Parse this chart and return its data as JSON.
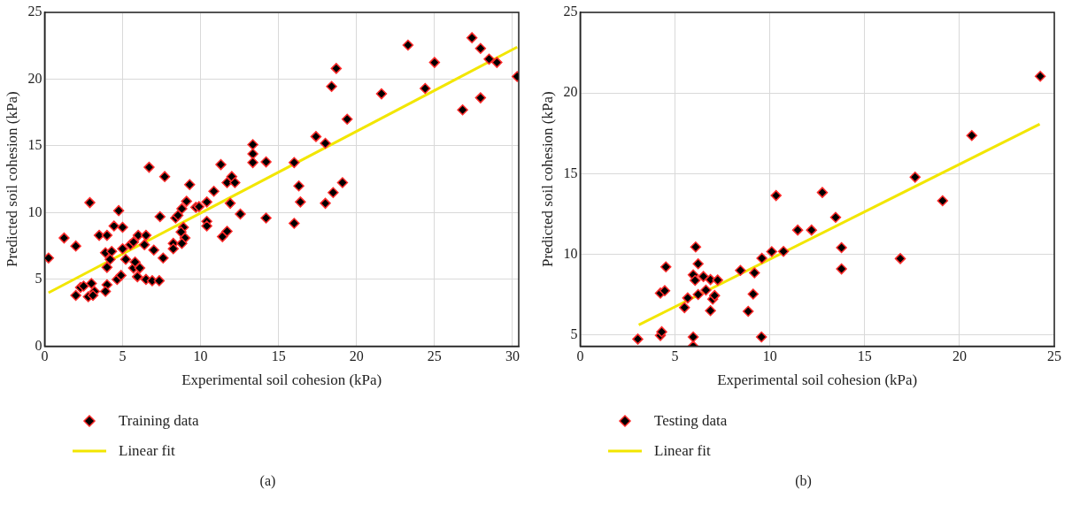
{
  "chart_data": [
    {
      "type": "scatter",
      "xlabel": "Experimental soil cohesion (kPa)",
      "ylabel": "Predicted soil cohesion (kPa)",
      "xlim": [
        0,
        30.4
      ],
      "xticks": [
        0,
        5,
        10,
        15,
        20,
        25,
        30
      ],
      "ylim": [
        0,
        25
      ],
      "yticks": [
        0,
        5,
        10,
        15,
        20,
        25
      ],
      "grid": true,
      "legend": "bottom",
      "annotations": [
        "(a)"
      ],
      "series": [
        {
          "name": "Training data",
          "type": "scatter",
          "marker": "diamond",
          "color": "#000000",
          "x": [
            0.25,
            1.25,
            2.0,
            2.0,
            2.3,
            2.5,
            2.9,
            2.8,
            3.0,
            3.2,
            3.1,
            3.5,
            4.0,
            3.9,
            4.3,
            4.0,
            4.2,
            4.0,
            3.9,
            4.45,
            4.75,
            5.0,
            4.65,
            4.9,
            5.0,
            5.2,
            5.5,
            5.7,
            5.7,
            5.95,
            6.1,
            5.8,
            6.0,
            6.5,
            6.4,
            6.7,
            6.5,
            7.0,
            6.9,
            7.35,
            7.4,
            7.6,
            7.7,
            8.25,
            8.25,
            8.4,
            8.55,
            8.8,
            8.9,
            8.75,
            9.0,
            8.8,
            9.1,
            9.3,
            9.7,
            9.9,
            10.4,
            10.4,
            10.4,
            10.85,
            11.3,
            11.4,
            11.7,
            11.9,
            11.7,
            12.0,
            12.2,
            12.55,
            13.35,
            13.35,
            13.35,
            14.2,
            14.2,
            16.0,
            16.3,
            16.4,
            16.0,
            17.4,
            18.0,
            18.0,
            18.5,
            19.1,
            18.4,
            18.7,
            19.4,
            21.6,
            23.3,
            24.4,
            25.0,
            26.8,
            27.4,
            27.95,
            27.95,
            28.5,
            29.0,
            30.3
          ],
          "values": [
            6.6,
            8.1,
            7.5,
            3.8,
            4.4,
            4.5,
            10.75,
            3.7,
            4.7,
            4.1,
            3.8,
            8.3,
            8.3,
            7.0,
            7.1,
            5.9,
            6.5,
            4.6,
            4.1,
            9.0,
            10.15,
            8.9,
            5.0,
            5.3,
            7.3,
            6.5,
            7.6,
            7.8,
            5.85,
            5.2,
            5.85,
            6.3,
            8.3,
            8.3,
            7.6,
            13.4,
            5.0,
            7.2,
            4.9,
            4.9,
            9.7,
            6.6,
            12.7,
            7.7,
            7.3,
            9.6,
            9.8,
            10.3,
            8.9,
            8.55,
            8.1,
            7.7,
            10.85,
            12.1,
            10.4,
            10.45,
            10.8,
            9.35,
            9.0,
            11.6,
            13.6,
            8.2,
            8.6,
            10.7,
            12.25,
            12.7,
            12.25,
            9.9,
            15.1,
            14.4,
            13.75,
            13.8,
            9.6,
            13.75,
            12.0,
            10.8,
            9.2,
            15.7,
            15.2,
            10.7,
            11.5,
            12.25,
            19.45,
            20.8,
            17.0,
            18.9,
            22.55,
            19.3,
            21.25,
            17.7,
            23.1,
            22.3,
            18.6,
            21.5,
            21.25,
            20.2
          ]
        },
        {
          "name": "Linear fit",
          "type": "line",
          "marker": "none",
          "color": "#f2e600",
          "x": [
            0.25,
            30.3
          ],
          "values": [
            4.0,
            22.4
          ]
        }
      ]
    },
    {
      "type": "scatter",
      "xlabel": "Experimental soil cohesion (kPa)",
      "ylabel": "Predicted soil cohesion (kPa)",
      "xlim": [
        0,
        25
      ],
      "xticks": [
        0,
        5,
        10,
        15,
        20,
        25
      ],
      "ylim": [
        4.3,
        25
      ],
      "yticks": [
        5,
        10,
        15,
        20,
        25
      ],
      "grid": true,
      "legend": "bottom",
      "annotations": [
        "(b)"
      ],
      "series": [
        {
          "name": "Testing data",
          "type": "scatter",
          "marker": "diamond",
          "color": "#000000",
          "x": [
            3.04,
            4.23,
            4.3,
            4.23,
            4.46,
            4.52,
            5.5,
            5.67,
            5.96,
            6.09,
            6.22,
            6.06,
            5.96,
            5.96,
            6.22,
            6.5,
            6.63,
            6.87,
            6.99,
            7.09,
            6.87,
            7.25,
            8.45,
            8.86,
            9.12,
            9.19,
            9.56,
            9.58,
            10.1,
            10.33,
            10.72,
            11.47,
            12.2,
            12.77,
            13.47,
            13.78,
            13.78,
            16.88,
            17.66,
            19.11,
            20.65,
            24.26
          ],
          "values": [
            4.74,
            4.96,
            5.19,
            7.59,
            7.74,
            9.22,
            6.69,
            7.29,
            8.72,
            10.45,
            9.41,
            8.38,
            4.87,
            4.3,
            7.5,
            8.62,
            7.78,
            8.43,
            7.22,
            7.44,
            6.5,
            8.4,
            9.0,
            6.46,
            7.53,
            8.85,
            4.87,
            9.75,
            10.16,
            13.64,
            10.18,
            11.5,
            11.5,
            13.83,
            12.29,
            10.41,
            9.09,
            9.73,
            14.78,
            13.32,
            17.36,
            21.04
          ]
        },
        {
          "name": "Linear fit",
          "type": "line",
          "marker": "none",
          "color": "#f2e600",
          "x": [
            3.09,
            24.23
          ],
          "values": [
            5.62,
            18.07
          ]
        }
      ]
    }
  ]
}
